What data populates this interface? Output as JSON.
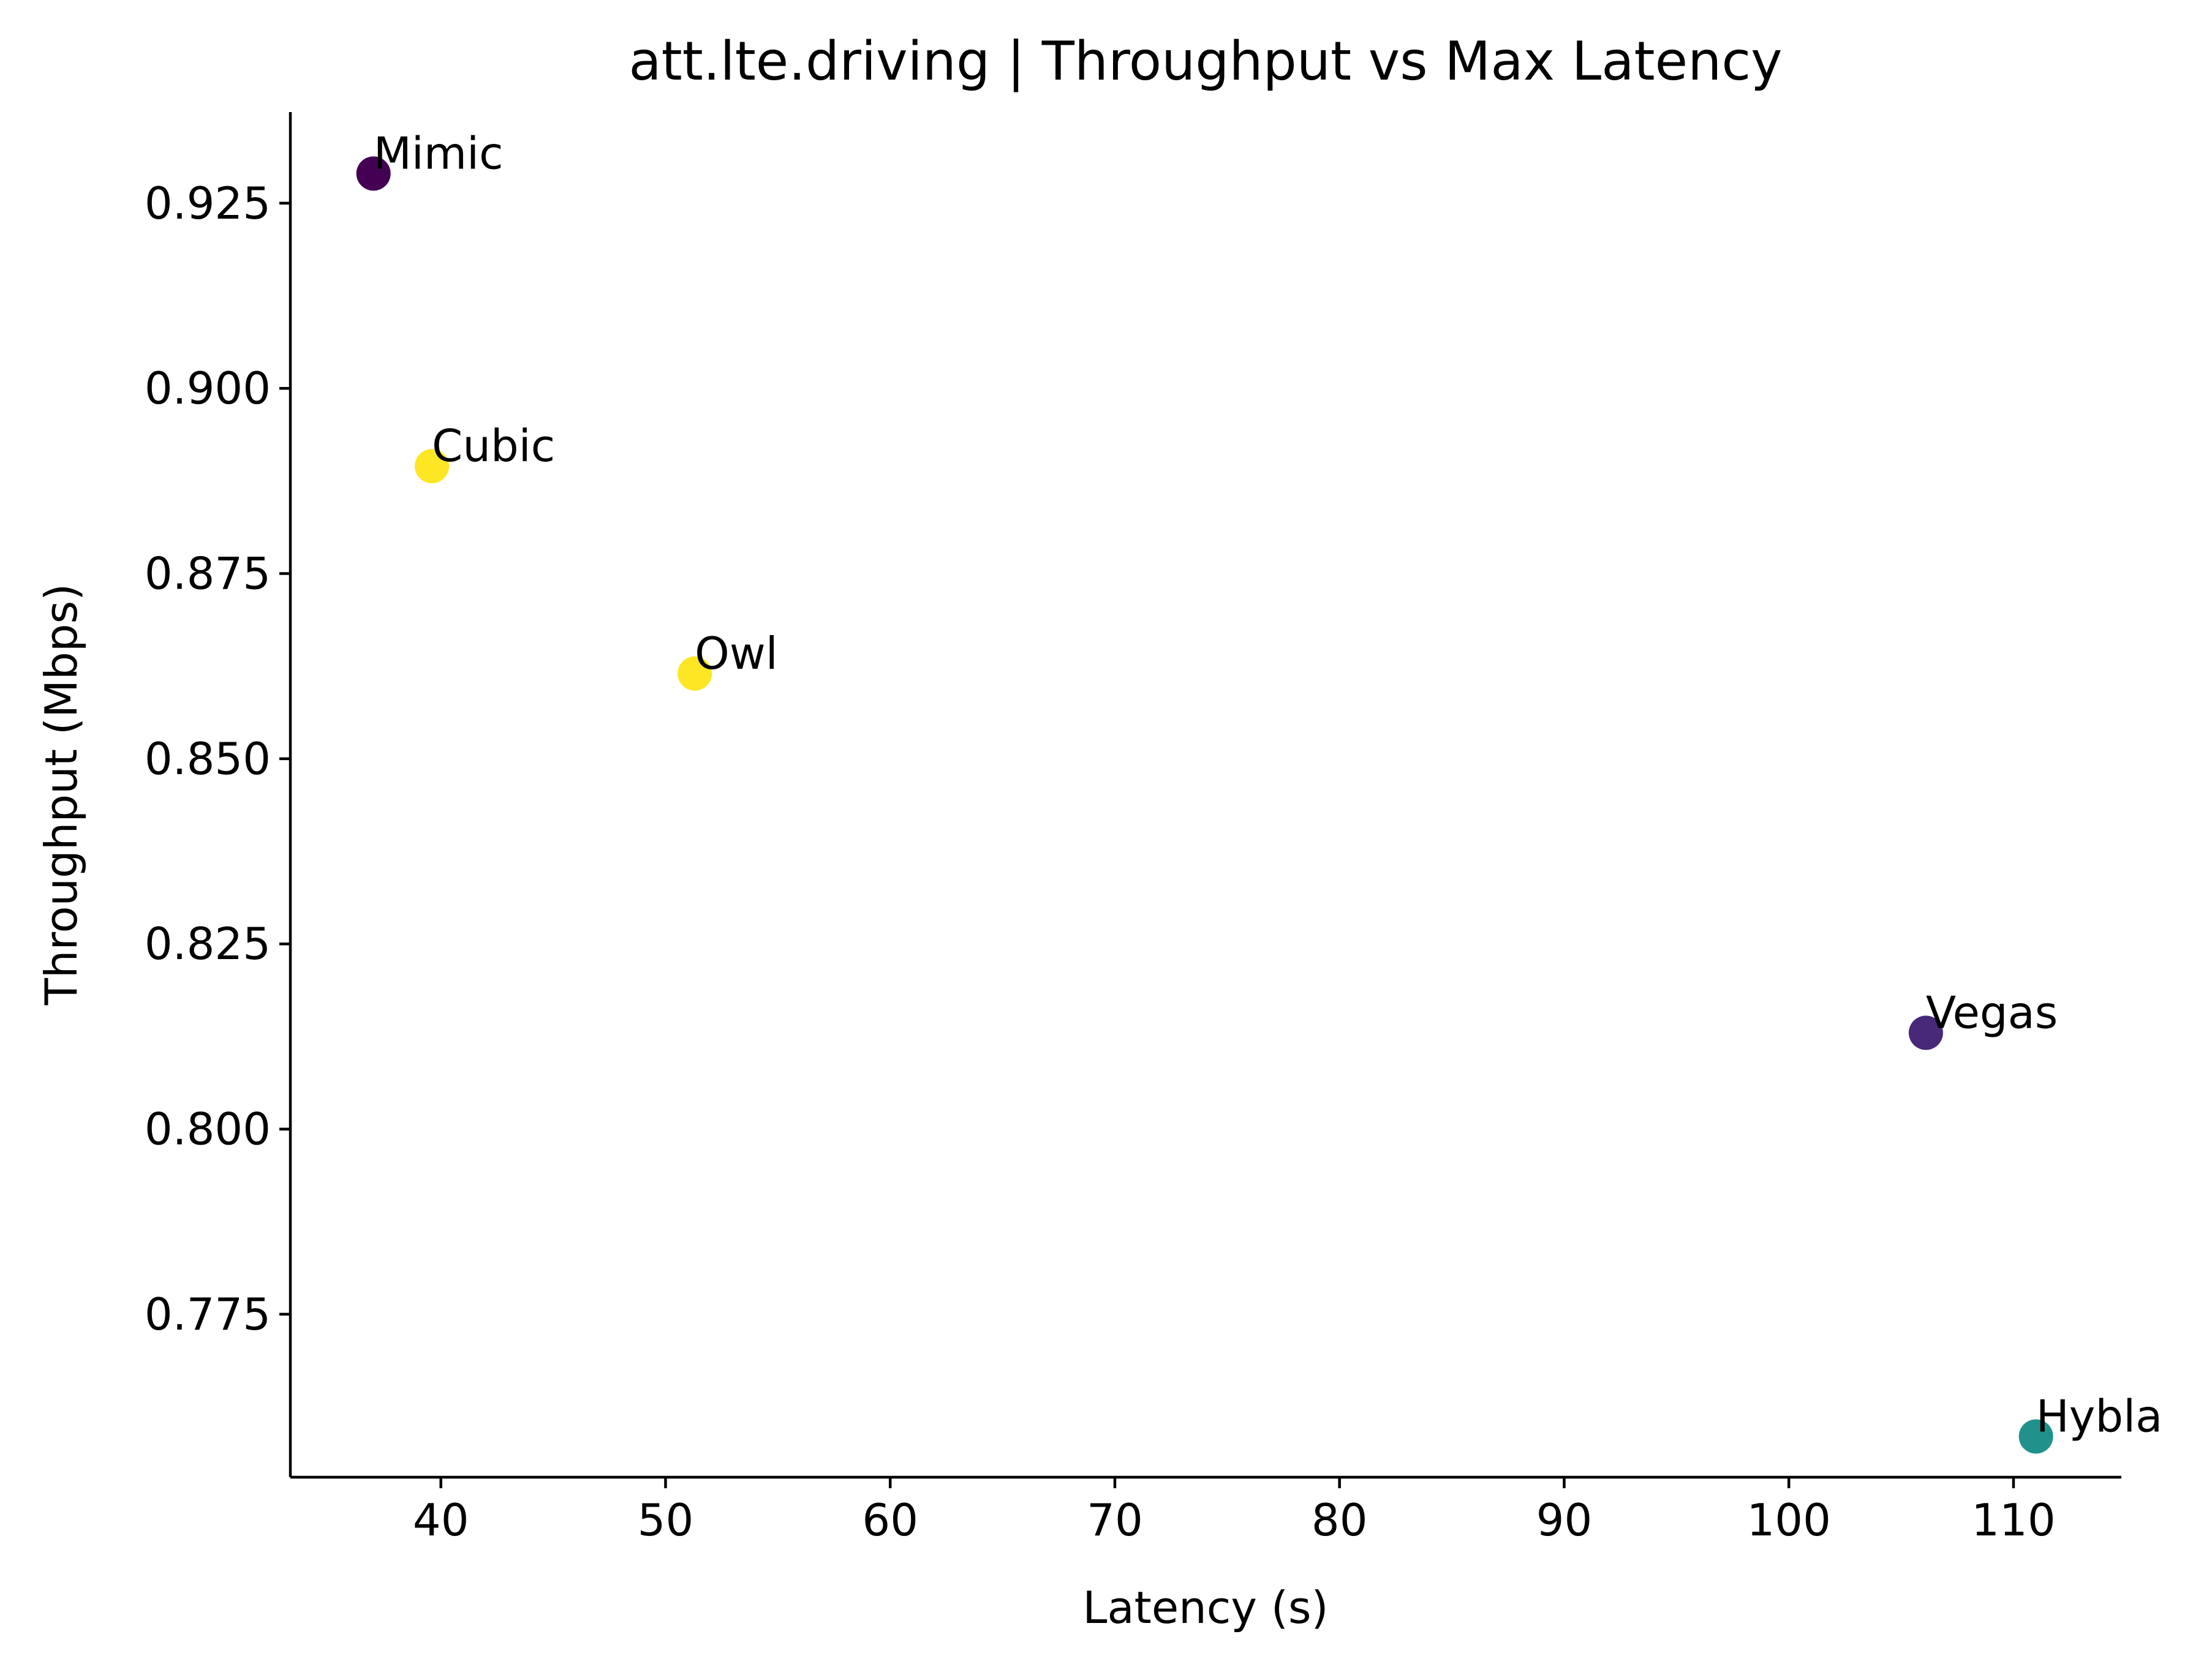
{
  "chart_data": {
    "type": "scatter",
    "title": "att.lte.driving | Throughput vs Max Latency",
    "xlabel": "Latency (s)",
    "ylabel": "Throughput (Mbps)",
    "xlim": [
      33.3,
      114.8
    ],
    "ylim": [
      0.753,
      0.9373
    ],
    "xticks": [
      40,
      50,
      60,
      70,
      80,
      90,
      100,
      110
    ],
    "xtick_labels": [
      "40",
      "50",
      "60",
      "70",
      "80",
      "90",
      "100",
      "110"
    ],
    "yticks": [
      0.775,
      0.8,
      0.825,
      0.85,
      0.875,
      0.9,
      0.925
    ],
    "ytick_labels": [
      "0.775",
      "0.800",
      "0.825",
      "0.850",
      "0.875",
      "0.900",
      "0.925"
    ],
    "grid": false,
    "points": [
      {
        "label": "Mimic",
        "x": 37.0,
        "y": 0.929,
        "color": "#440154"
      },
      {
        "label": "Cubic",
        "x": 39.6,
        "y": 0.8895,
        "color": "#fde725"
      },
      {
        "label": "Owl",
        "x": 51.3,
        "y": 0.8615,
        "color": "#fde725"
      },
      {
        "label": "Vegas",
        "x": 106.1,
        "y": 0.813,
        "color": "#482878"
      },
      {
        "label": "Hybla",
        "x": 111.0,
        "y": 0.7585,
        "color": "#21918c"
      }
    ]
  }
}
